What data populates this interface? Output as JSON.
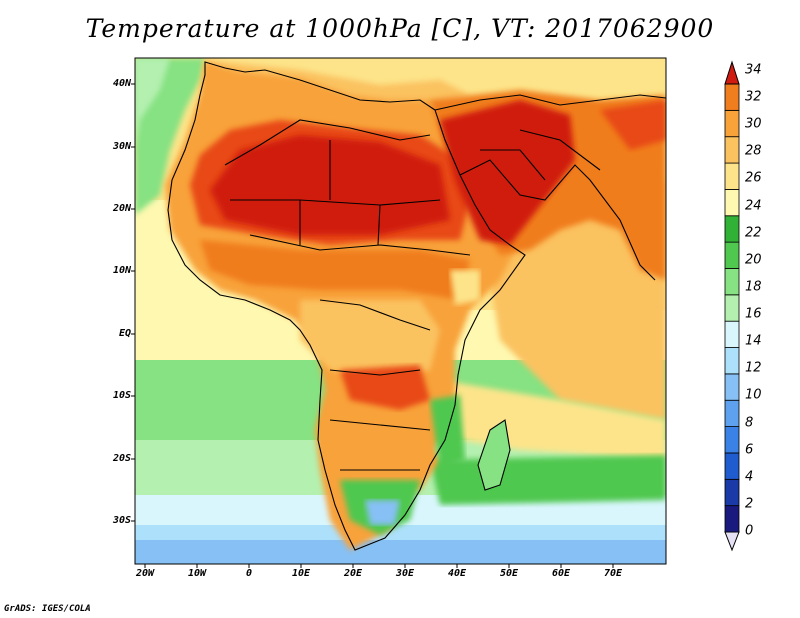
{
  "title": "Temperature at 1000hPa [C], VT: 2017062900",
  "credit": "GrADS: IGES/COLA",
  "lat_labels": [
    "40N",
    "30N",
    "20N",
    "10N",
    "EQ",
    "10S",
    "20S",
    "30S"
  ],
  "lon_labels": [
    "20W",
    "10W",
    "0",
    "10E",
    "20E",
    "30E",
    "40E",
    "50E",
    "60E",
    "70E"
  ],
  "colorbar": {
    "labels": [
      "34",
      "32",
      "30",
      "28",
      "26",
      "24",
      "22",
      "20",
      "18",
      "16",
      "14",
      "12",
      "10",
      "8",
      "6",
      "4",
      "2",
      "0"
    ],
    "colors": [
      "#1a1a7e",
      "#1a3aa8",
      "#1f5cd0",
      "#3a82e6",
      "#5ea2ef",
      "#86c0f5",
      "#ade0fb",
      "#d9f6fd",
      "#b4f0b0",
      "#86e282",
      "#50c850",
      "#31b236",
      "#fef8b0",
      "#fde48a",
      "#fbc260",
      "#f8a23a",
      "#f07d1e",
      "#e84a14",
      "#d01c10"
    ]
  }
}
